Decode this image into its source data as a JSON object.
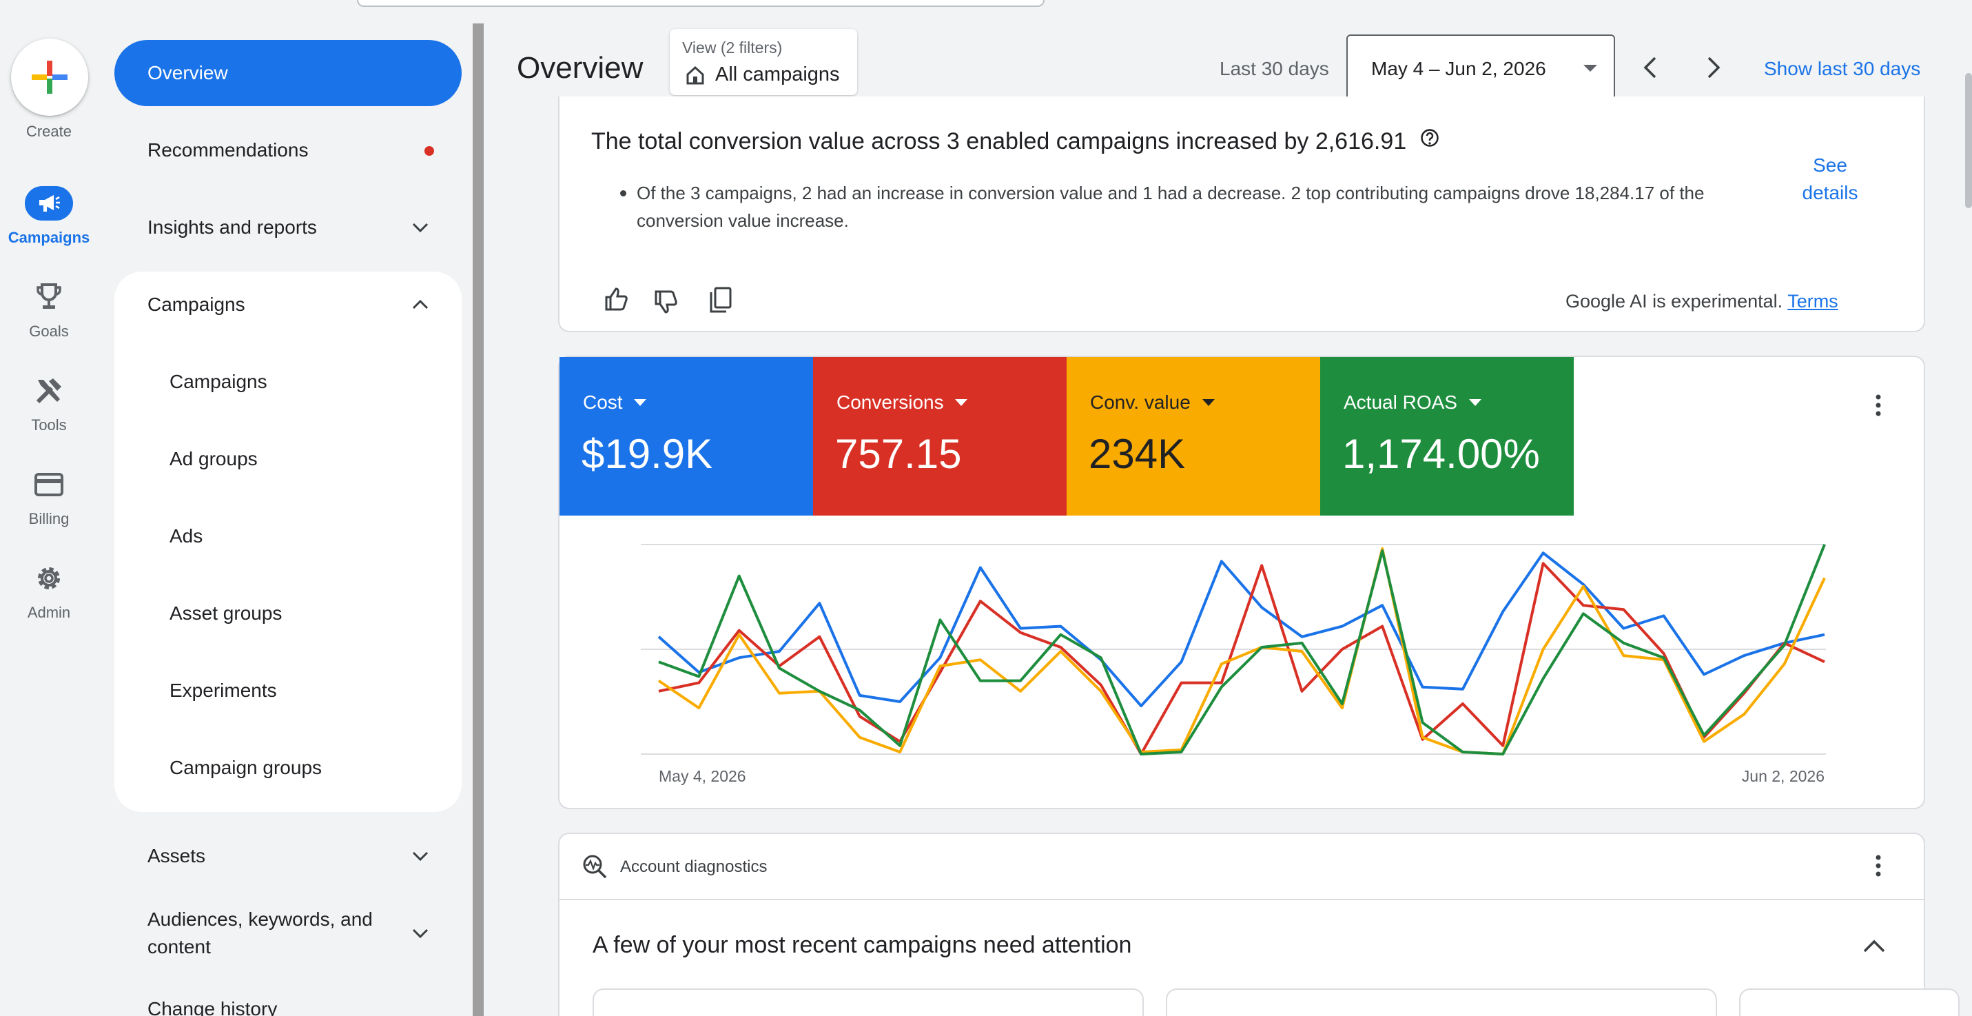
{
  "rail": {
    "create": "Create",
    "items": [
      {
        "label": "Campaigns",
        "icon": "megaphone-icon",
        "active": true
      },
      {
        "label": "Goals",
        "icon": "trophy-icon"
      },
      {
        "label": "Tools",
        "icon": "tools-icon"
      },
      {
        "label": "Billing",
        "icon": "credit-card-icon"
      },
      {
        "label": "Admin",
        "icon": "gear-icon"
      }
    ]
  },
  "nav": {
    "overview": "Overview",
    "recommendations": "Recommendations",
    "insights": "Insights and reports",
    "campaigns_section": "Campaigns",
    "campaign_subitems": [
      "Campaigns",
      "Ad groups",
      "Ads",
      "Asset groups",
      "Experiments",
      "Campaign groups"
    ],
    "assets": "Assets",
    "audiences_line1": "Audiences, keywords, and",
    "audiences_line2": "content",
    "change_history": "Change history"
  },
  "header": {
    "title": "Overview",
    "view_sub": "View (2 filters)",
    "view_main": "All campaigns",
    "period_label": "Last 30 days",
    "date_range": "May 4 – Jun 2, 2026",
    "show_last": "Show last 30 days"
  },
  "insight": {
    "title": "The total conversion value across 3 enabled campaigns increased by 2,616.91",
    "bullet": "Of the 3 campaigns, 2 had an increase in conversion value and 1 had a decrease. 2 top contributing campaigns drove 18,284.17 of the conversion value increase.",
    "see": "See",
    "details": "details",
    "ai_note": "Google AI is experimental.",
    "terms": "Terms"
  },
  "metrics": [
    {
      "label": "Cost",
      "value": "$19.9K",
      "color": "#1a73e8"
    },
    {
      "label": "Conversions",
      "value": "757.15",
      "color": "#d93025"
    },
    {
      "label": "Conv. value",
      "value": "234K",
      "color": "#f9ab00"
    },
    {
      "label": "Actual ROAS",
      "value": "1,174.00%",
      "color": "#1e8e3e"
    }
  ],
  "chart_data": {
    "type": "line",
    "x_start_label": "May 4, 2026",
    "x_end_label": "Jun 2, 2026",
    "scale_note": "each series normalized 0-1 on its own axis",
    "series": [
      {
        "color": "#1a73e8",
        "values": [
          0.56,
          0.39,
          0.46,
          0.49,
          0.72,
          0.28,
          0.25,
          0.46,
          0.89,
          0.6,
          0.61,
          0.45,
          0.23,
          0.44,
          0.92,
          0.7,
          0.56,
          0.61,
          0.71,
          0.32,
          0.31,
          0.68,
          0.96,
          0.81,
          0.6,
          0.66,
          0.38,
          0.47,
          0.53,
          0.57
        ]
      },
      {
        "color": "#d93025",
        "values": [
          0.3,
          0.34,
          0.59,
          0.42,
          0.56,
          0.18,
          0.06,
          0.39,
          0.73,
          0.58,
          0.51,
          0.33,
          0.0,
          0.34,
          0.34,
          0.9,
          0.3,
          0.5,
          0.61,
          0.07,
          0.24,
          0.04,
          0.91,
          0.71,
          0.69,
          0.48,
          0.08,
          0.29,
          0.53,
          0.44
        ]
      },
      {
        "color": "#f9ab00",
        "values": [
          0.35,
          0.22,
          0.57,
          0.29,
          0.3,
          0.08,
          0.01,
          0.42,
          0.45,
          0.3,
          0.49,
          0.3,
          0.01,
          0.02,
          0.43,
          0.51,
          0.49,
          0.22,
          0.98,
          0.08,
          0.01,
          0.0,
          0.5,
          0.8,
          0.47,
          0.45,
          0.06,
          0.19,
          0.43,
          0.84
        ]
      },
      {
        "color": "#1e8e3e",
        "values": [
          0.44,
          0.37,
          0.85,
          0.41,
          0.3,
          0.21,
          0.04,
          0.64,
          0.35,
          0.35,
          0.57,
          0.46,
          0.0,
          0.01,
          0.32,
          0.51,
          0.53,
          0.24,
          0.97,
          0.15,
          0.01,
          0.0,
          0.36,
          0.67,
          0.53,
          0.46,
          0.09,
          0.3,
          0.52,
          1.0
        ]
      }
    ]
  },
  "diagnostics": {
    "label": "Account diagnostics",
    "attention": "A few of your most recent campaigns need attention"
  }
}
